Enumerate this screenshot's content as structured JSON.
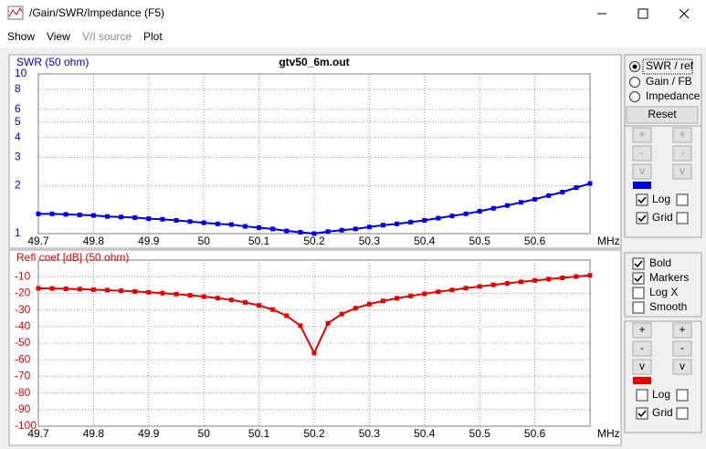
{
  "window": {
    "title": "/Gain/SWR/Impedance (F5)"
  },
  "menu": [
    "Show",
    "View",
    "V/I source",
    "Plot"
  ],
  "chart_data": [
    {
      "type": "line",
      "title": "gtv50_6m.out",
      "ylabel": "SWR (50 ohm)",
      "xlabel": "MHz",
      "color": "#0000e6",
      "x": [
        49.7,
        49.725,
        49.75,
        49.775,
        49.8,
        49.825,
        49.85,
        49.875,
        49.9,
        49.925,
        49.95,
        49.975,
        50.0,
        50.025,
        50.05,
        50.075,
        50.1,
        50.125,
        50.15,
        50.175,
        50.2,
        50.225,
        50.25,
        50.275,
        50.3,
        50.325,
        50.35,
        50.375,
        50.4,
        50.425,
        50.45,
        50.475,
        50.5,
        50.525,
        50.55,
        50.575,
        50.6,
        50.625,
        50.65,
        50.675,
        50.7
      ],
      "values": [
        1.33,
        1.33,
        1.32,
        1.31,
        1.3,
        1.28,
        1.27,
        1.26,
        1.24,
        1.23,
        1.21,
        1.19,
        1.17,
        1.15,
        1.14,
        1.11,
        1.09,
        1.07,
        1.04,
        1.02,
        1.0,
        1.03,
        1.05,
        1.07,
        1.1,
        1.13,
        1.15,
        1.18,
        1.21,
        1.25,
        1.29,
        1.33,
        1.38,
        1.44,
        1.5,
        1.57,
        1.64,
        1.73,
        1.82,
        1.94,
        2.06
      ],
      "xlim": [
        49.7,
        50.7
      ],
      "xticks": [
        49.7,
        49.8,
        49.9,
        50,
        50.1,
        50.2,
        50.3,
        50.4,
        50.5,
        50.6
      ],
      "ylim": [
        1,
        10
      ],
      "yticks": [
        1,
        2,
        3,
        4,
        5,
        6,
        8,
        10
      ],
      "log_y": true,
      "grid": true,
      "markers": true
    },
    {
      "type": "line",
      "ylabel": "Refl coef [dB] (50 ohm)",
      "xlabel": "MHz",
      "color": "#e60000",
      "x": [
        49.7,
        49.725,
        49.75,
        49.775,
        49.8,
        49.825,
        49.85,
        49.875,
        49.9,
        49.925,
        49.95,
        49.975,
        50.0,
        50.025,
        50.05,
        50.075,
        50.1,
        50.125,
        50.15,
        50.175,
        50.2,
        50.225,
        50.25,
        50.275,
        50.3,
        50.325,
        50.35,
        50.375,
        50.4,
        50.425,
        50.45,
        50.475,
        50.5,
        50.525,
        50.55,
        50.575,
        50.6,
        50.625,
        50.65,
        50.675,
        50.7
      ],
      "values": [
        -17.0,
        -17.1,
        -17.3,
        -17.5,
        -17.8,
        -18.1,
        -18.5,
        -18.9,
        -19.4,
        -19.9,
        -20.5,
        -21.2,
        -22.0,
        -22.9,
        -24.0,
        -25.5,
        -27.3,
        -29.8,
        -33.5,
        -39.5,
        -56.0,
        -38.0,
        -32.5,
        -29.0,
        -26.5,
        -24.6,
        -23.0,
        -21.6,
        -20.3,
        -19.1,
        -18.0,
        -16.9,
        -15.9,
        -14.9,
        -14.0,
        -13.1,
        -12.3,
        -11.5,
        -10.7,
        -9.9,
        -9.2
      ],
      "xlim": [
        49.7,
        50.7
      ],
      "xticks": [
        49.7,
        49.8,
        49.9,
        50,
        50.1,
        50.2,
        50.3,
        50.4,
        50.5,
        50.6
      ],
      "ylim": [
        -100,
        0
      ],
      "yticks": [
        -10,
        -20,
        -30,
        -40,
        -50,
        -60,
        -70,
        -80,
        -90,
        -100
      ],
      "log_y": false,
      "grid": true,
      "markers": true
    }
  ],
  "panel": {
    "modes": [
      {
        "label": "SWR / ref",
        "selected": true
      },
      {
        "label": "Gain / FB",
        "selected": false
      },
      {
        "label": "Impedance",
        "selected": false
      }
    ],
    "reset": "Reset",
    "top": {
      "buttons": [
        "+",
        "+",
        "-",
        "-",
        "v",
        "v"
      ],
      "checks": [
        {
          "label": "Log",
          "checked": true,
          "right_checked": false
        },
        {
          "label": "Grid",
          "checked": true,
          "right_checked": false
        }
      ]
    },
    "options": [
      {
        "label": "Bold",
        "checked": true
      },
      {
        "label": "Markers",
        "checked": true
      },
      {
        "label": "Log X",
        "checked": false
      },
      {
        "label": "Smooth",
        "checked": false
      }
    ],
    "bottom": {
      "buttons": [
        "+",
        "+",
        "-",
        "-",
        "v",
        "v"
      ],
      "checks": [
        {
          "label": "Log",
          "checked": false,
          "right_checked": false
        },
        {
          "label": "Grid",
          "checked": true,
          "right_checked": false
        }
      ]
    }
  }
}
